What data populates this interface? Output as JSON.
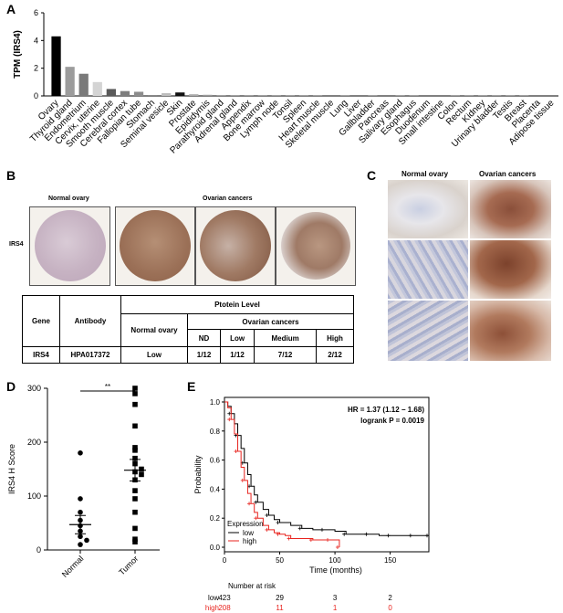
{
  "panels": {
    "a": "A",
    "b": "B",
    "c": "C",
    "d": "D",
    "e": "E"
  },
  "chart_data": [
    {
      "type": "bar",
      "panel": "A",
      "ylabel": "TPM (IRS4)",
      "ylim": [
        0,
        6
      ],
      "yticks": [
        "0",
        "2",
        "4",
        "6"
      ],
      "categories": [
        "Ovary",
        "Thyroid gland",
        "Endometrium",
        "Cervix, uterine",
        "Smooth muscle",
        "Cerebral cortex",
        "Fallopian tube",
        "Stomach",
        "Seminal vesicle",
        "Skin",
        "Prostate",
        "Epididymis",
        "Parathyroid gland",
        "Adrenal gland",
        "Appendix",
        "Bone marrow",
        "Lymph node",
        "Tonsil",
        "Spleen",
        "Heart muscle",
        "Skeletal muscle",
        "Lung",
        "Liver",
        "Gallbladder",
        "Pancreas",
        "Salivary gland",
        "Esophagus",
        "Duodenum",
        "Small intestine",
        "Colon",
        "Rectum",
        "Kidney",
        "Urinary bladder",
        "Testis",
        "Breast",
        "Placenta",
        "Adipose tissue"
      ],
      "values": [
        4.3,
        2.1,
        1.6,
        1.0,
        0.5,
        0.35,
        0.3,
        0.05,
        0.2,
        0.25,
        0.12,
        0.08,
        0.02,
        0.02,
        0.01,
        0.01,
        0.01,
        0.01,
        0.01,
        0.01,
        0,
        0.01,
        0,
        0.01,
        0,
        0.01,
        0.01,
        0,
        0,
        0.01,
        0.01,
        0.01,
        0.01,
        0.01,
        0.01,
        0,
        0
      ],
      "colors": [
        "#000000",
        "#9c9c9c",
        "#7a7a7a",
        "#d4d4d4",
        "#5a5a5a",
        "#7d7d7d",
        "#8c8c8c",
        "#6a6a6a",
        "#bdbdbd",
        "#111111",
        "#aaaaaa",
        "#999999",
        "#888888",
        "#888888",
        "#888888",
        "#888888",
        "#888888",
        "#888888",
        "#888888",
        "#888888",
        "#888888",
        "#888888",
        "#888888",
        "#888888",
        "#888888",
        "#888888",
        "#888888",
        "#888888",
        "#888888",
        "#888888",
        "#888888",
        "#888888",
        "#888888",
        "#888888",
        "#888888",
        "#888888",
        "#888888"
      ]
    },
    {
      "type": "scatter",
      "panel": "D",
      "ylabel": "IRS4 H Score",
      "ylim": [
        0,
        300
      ],
      "yticks": [
        "0",
        "100",
        "200",
        "300"
      ],
      "categories": [
        "Normal",
        "Tumor"
      ],
      "significance": "**",
      "groups": [
        {
          "name": "Normal",
          "marker": "circle",
          "mean": 47,
          "sem": 17,
          "values": [
            180,
            95,
            70,
            55,
            45,
            35,
            25,
            18,
            10
          ]
        },
        {
          "name": "Tumor",
          "marker": "square",
          "mean": 148,
          "sem": 20,
          "values": [
            300,
            290,
            270,
            230,
            190,
            185,
            170,
            160,
            150,
            145,
            140,
            130,
            110,
            95,
            70,
            40,
            20,
            15
          ]
        }
      ]
    },
    {
      "type": "line",
      "panel": "E",
      "xlabel": "Time (months)",
      "ylabel": "Probability",
      "xlim": [
        0,
        185
      ],
      "ylim": [
        0,
        1.0
      ],
      "xticks": [
        "0",
        "50",
        "100",
        "150"
      ],
      "yticks": [
        "0.0",
        "0.2",
        "0.4",
        "0.6",
        "0.8",
        "1.0"
      ],
      "annotations": [
        "HR = 1.37 (1.12 − 1.68)",
        "logrank P = 0.0019"
      ],
      "legend_title": "Expression",
      "series": [
        {
          "name": "low",
          "color": "#000000",
          "x": [
            0,
            3,
            6,
            9,
            12,
            15,
            18,
            21,
            24,
            27,
            30,
            35,
            40,
            45,
            50,
            60,
            70,
            80,
            90,
            100,
            110,
            120,
            130,
            140,
            150,
            160,
            170,
            180,
            185
          ],
          "y": [
            1.0,
            0.97,
            0.92,
            0.85,
            0.77,
            0.68,
            0.58,
            0.5,
            0.42,
            0.36,
            0.31,
            0.26,
            0.22,
            0.19,
            0.17,
            0.15,
            0.13,
            0.12,
            0.12,
            0.11,
            0.09,
            0.09,
            0.09,
            0.08,
            0.08,
            0.08,
            0.08,
            0.08,
            0.08
          ]
        },
        {
          "name": "high",
          "color": "#e8241f",
          "x": [
            0,
            3,
            6,
            9,
            12,
            15,
            18,
            21,
            24,
            27,
            30,
            35,
            40,
            45,
            50,
            55,
            60,
            70,
            80,
            90,
            95,
            100,
            104
          ],
          "y": [
            1.0,
            0.96,
            0.88,
            0.78,
            0.66,
            0.55,
            0.46,
            0.37,
            0.3,
            0.24,
            0.2,
            0.15,
            0.12,
            0.1,
            0.09,
            0.08,
            0.06,
            0.06,
            0.05,
            0.05,
            0.05,
            0.05,
            0.0
          ]
        }
      ],
      "risk_table": {
        "title": "Number at risk",
        "rows": [
          {
            "label": "low",
            "color": "#000000",
            "values": [
              "423",
              "29",
              "3",
              "2"
            ]
          },
          {
            "label": "high",
            "color": "#e8241f",
            "values": [
              "208",
              "11",
              "1",
              "0"
            ]
          }
        ]
      }
    }
  ],
  "panel_b": {
    "normal_title": "Normal ovary",
    "cancer_title": "Ovarian cancers",
    "row_label": "IRS4",
    "table": {
      "gene_header": "Gene",
      "antibody_header": "Antibody",
      "level_header": "Ptotein Level",
      "normal_header": "Normal ovary",
      "cancer_header": "Ovarian cancers",
      "sub_headers": [
        "ND",
        "Low",
        "Medium",
        "High"
      ],
      "row": {
        "gene": "IRS4",
        "antibody": "HPA017372",
        "normal": "Low",
        "values": [
          "1/12",
          "1/12",
          "7/12",
          "2/12"
        ]
      }
    }
  },
  "panel_c": {
    "normal_title": "Normal ovary",
    "cancer_title": "Ovarian cancers"
  }
}
